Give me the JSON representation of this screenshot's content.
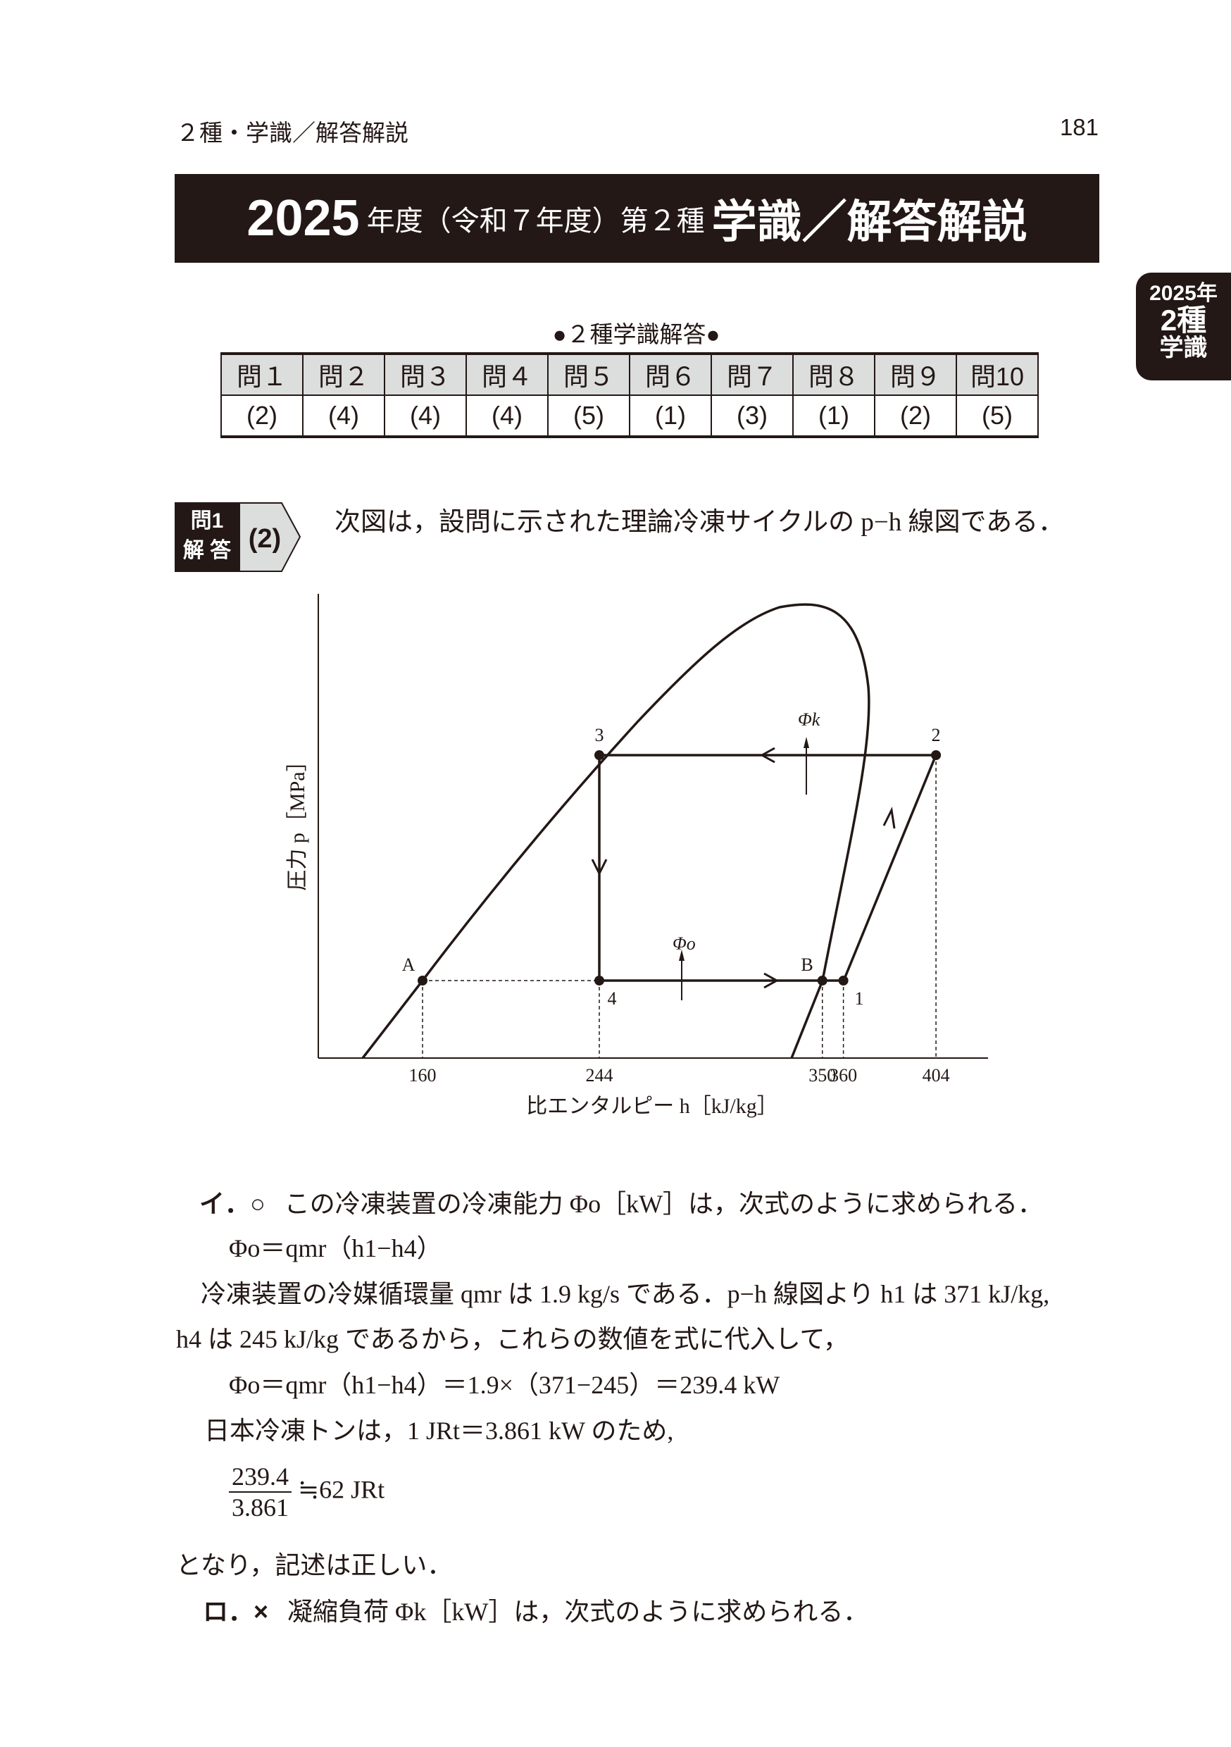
{
  "header": {
    "running_head": "２種・学識／解答解説",
    "page_number": "181"
  },
  "title": {
    "year": "2025",
    "mid": "年度（令和７年度）第２種",
    "bold": "学識／解答解説"
  },
  "side_tab": {
    "line1": "2025年",
    "line2": "2種",
    "line3": "学識"
  },
  "answers": {
    "caption": "●２種学識解答●",
    "questions": [
      "問１",
      "問２",
      "問３",
      "問４",
      "問５",
      "問６",
      "問７",
      "問８",
      "問９",
      "問10"
    ],
    "values": [
      "(2)",
      "(4)",
      "(4)",
      "(4)",
      "(5)",
      "(1)",
      "(3)",
      "(1)",
      "(2)",
      "(5)"
    ]
  },
  "q1": {
    "badge_top": "問1",
    "badge_bottom": "解 答",
    "answer": "(2)",
    "intro": "次図は，設問に示された理論冷凍サイクルの p−h 線図である．"
  },
  "figure": {
    "ylabel": "圧力 p［MPa］",
    "xlabel": "比エンタルピー h［kJ/kg］",
    "x_ticks": [
      160,
      244,
      350,
      360,
      404
    ],
    "points": {
      "A": "A",
      "B": "B",
      "p1": "1",
      "p2": "2",
      "p3": "3",
      "p4": "4"
    },
    "phi_k": "Φk",
    "phi_o": "Φo"
  },
  "body": {
    "i_mark": "イ．○",
    "i_text": "この冷凍装置の冷凍能力 Φo［kW］は，次式のように求められる．",
    "eq1": "Φo＝qmr（h1−h4）",
    "p1": "冷凍装置の冷媒循環量 qmr は 1.9 kg/s である．p−h 線図より h1 は 371 kJ/kg,",
    "p2": "h4 は 245 kJ/kg であるから，これらの数値を式に代入して，",
    "eq2": "Φo＝qmr（h1−h4）＝1.9×（371−245）＝239.4 kW",
    "p3": "日本冷凍トンは，1 JRt＝3.861 kW のため,",
    "frac_num": "239.4",
    "frac_den": "3.861",
    "frac_result": "≒62 JRt",
    "p4": "となり，記述は正しい．",
    "ro_mark": "ロ．×",
    "ro_text": "凝縮負荷 Φk［kW］は，次式のように求められる．"
  }
}
